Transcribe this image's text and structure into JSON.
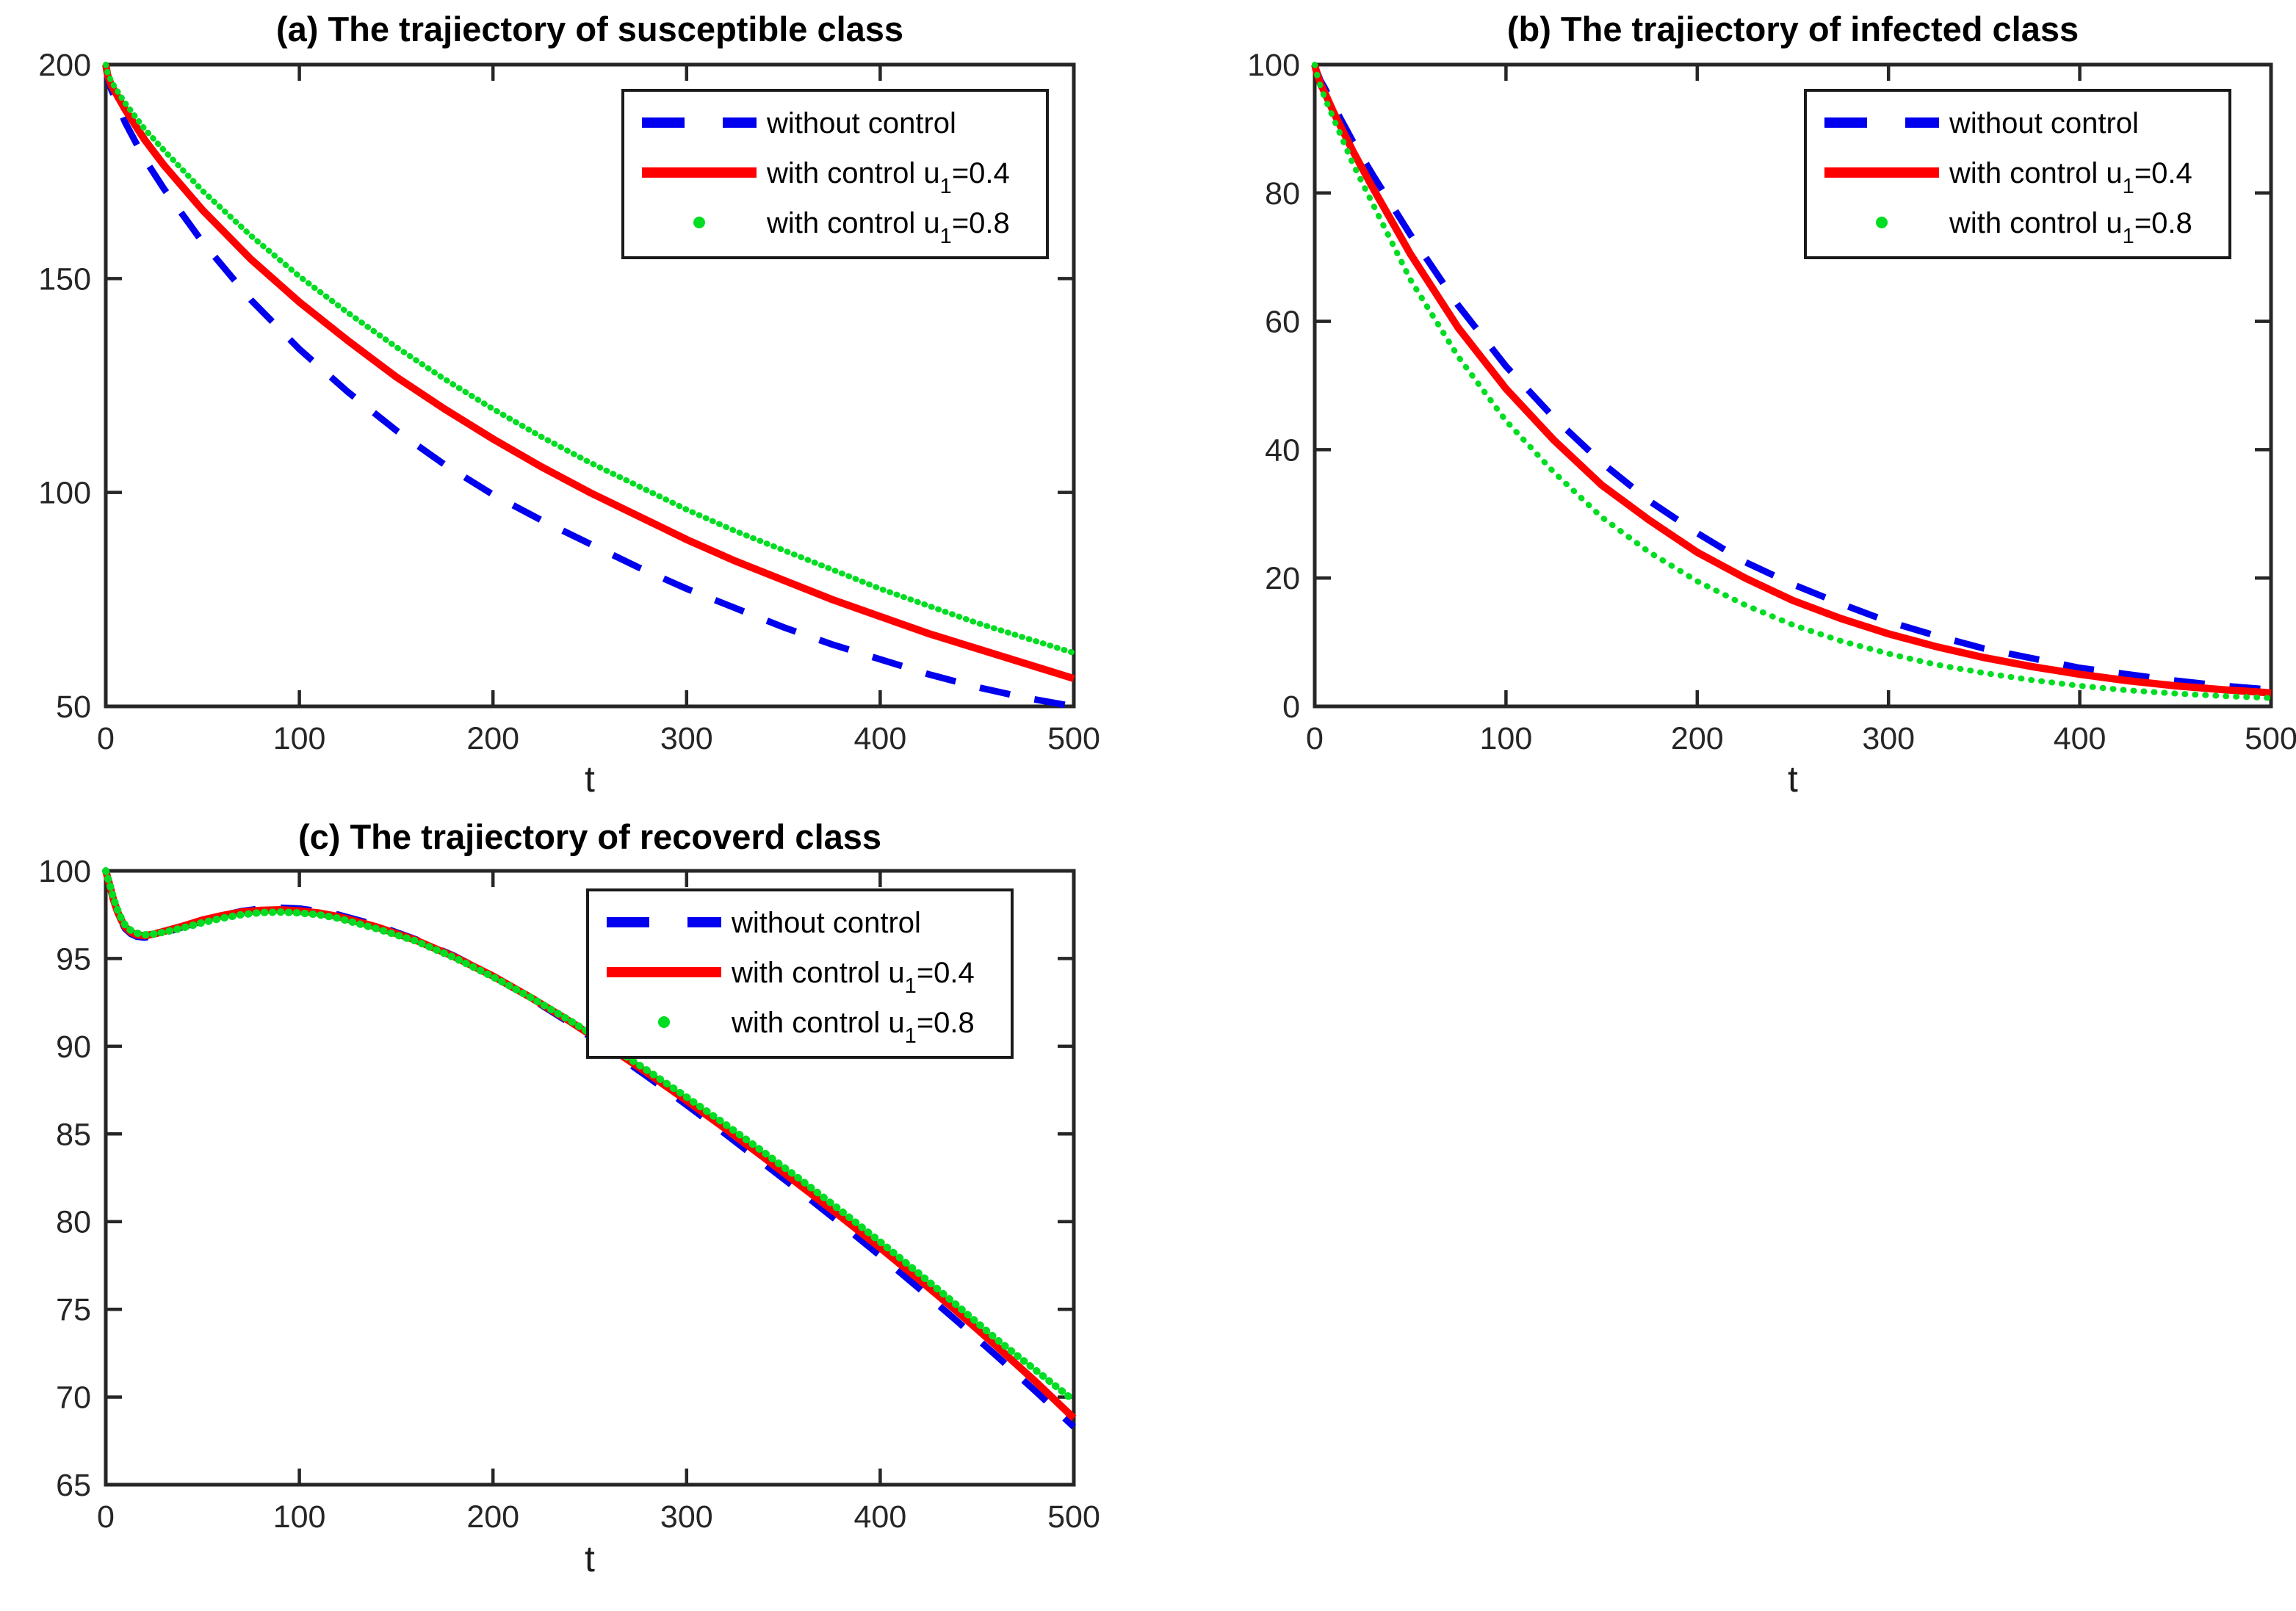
{
  "figure": {
    "background": "#ffffff",
    "axis_color": "#262626",
    "tick_label_color": "#262626",
    "title_color": "#000000",
    "series_colors": {
      "without_control": "#0000ee",
      "with_control_u1_04": "#ff0000",
      "with_control_u1_08": "#00dd22"
    }
  },
  "chart_data": [
    {
      "id": "a",
      "type": "line",
      "title": "(a) The trajiectory of susceptible class",
      "xlabel": "t",
      "xlim": [
        0,
        500
      ],
      "ylim": [
        50,
        200
      ],
      "xticks": [
        0,
        100,
        200,
        300,
        400,
        500
      ],
      "yticks": [
        50,
        100,
        150,
        200
      ],
      "grid": false,
      "legend_position": "top-right",
      "series": [
        {
          "name": "without control",
          "legend_label": {
            "pre": "without control",
            "sub": "",
            "post": ""
          },
          "color": "#0000ee",
          "style": "dashed",
          "x": [
            0,
            1,
            3,
            5,
            10,
            20,
            30,
            50,
            75,
            100,
            125,
            150,
            175,
            200,
            225,
            250,
            275,
            300,
            325,
            350,
            375,
            400,
            425,
            450,
            475,
            500
          ],
          "y": [
            200,
            197,
            194,
            192,
            186.5,
            178,
            171,
            158.5,
            145,
            133.5,
            123.5,
            114.5,
            106.5,
            99.5,
            93.5,
            88,
            82.5,
            77.5,
            73,
            68.5,
            64.5,
            61,
            57.5,
            54.5,
            52,
            50
          ]
        },
        {
          "name": "with control u1=0.4",
          "legend_label": {
            "pre": "with control u",
            "sub": "1",
            "post": "=0.4"
          },
          "color": "#ff0000",
          "style": "solid",
          "x": [
            0,
            1,
            3,
            5,
            10,
            20,
            30,
            50,
            75,
            100,
            125,
            150,
            175,
            200,
            225,
            250,
            275,
            300,
            325,
            350,
            375,
            400,
            425,
            450,
            475,
            500
          ],
          "y": [
            200,
            197.5,
            195,
            193.5,
            189.5,
            182.5,
            176.5,
            166,
            154.5,
            144.5,
            135.5,
            127,
            119.5,
            112.5,
            106,
            100,
            94.5,
            89,
            84,
            79.5,
            75,
            71,
            67,
            63.5,
            60,
            56.5
          ]
        },
        {
          "name": "with control u1=0.8",
          "legend_label": {
            "pre": "with control u",
            "sub": "1",
            "post": "=0.8"
          },
          "color": "#00dd22",
          "style": "dotted",
          "x": [
            0,
            1,
            3,
            5,
            10,
            20,
            30,
            50,
            75,
            100,
            125,
            150,
            175,
            200,
            225,
            250,
            275,
            300,
            325,
            350,
            375,
            400,
            425,
            450,
            475,
            500
          ],
          "y": [
            200,
            198,
            196,
            194.5,
            191,
            185,
            180,
            170.5,
            160,
            150.5,
            142,
            134,
            126.5,
            119.5,
            113,
            107,
            101.5,
            96,
            91,
            86.5,
            82,
            77.5,
            73.5,
            69.5,
            66,
            62.5
          ]
        }
      ]
    },
    {
      "id": "b",
      "type": "line",
      "title": "(b) The trajiectory of infected class",
      "xlabel": "t",
      "xlim": [
        0,
        500
      ],
      "ylim": [
        0,
        100
      ],
      "xticks": [
        0,
        100,
        200,
        300,
        400,
        500
      ],
      "yticks": [
        0,
        20,
        40,
        60,
        80,
        100
      ],
      "grid": false,
      "legend_position": "top-right",
      "series": [
        {
          "name": "without control",
          "legend_label": {
            "pre": "without control",
            "sub": "",
            "post": ""
          },
          "color": "#0000ee",
          "style": "dashed",
          "x": [
            0,
            1,
            3,
            5,
            10,
            20,
            30,
            50,
            75,
            100,
            125,
            150,
            175,
            200,
            225,
            250,
            275,
            300,
            325,
            350,
            375,
            400,
            425,
            450,
            475,
            500
          ],
          "y": [
            100,
            99,
            97.5,
            96.5,
            93.5,
            88,
            83,
            73.5,
            62.5,
            53,
            45,
            38,
            32,
            27,
            22.5,
            19,
            16,
            13.2,
            11,
            9,
            7.5,
            6,
            5,
            4,
            3.2,
            2.6
          ]
        },
        {
          "name": "with control u1=0.4",
          "legend_label": {
            "pre": "with control u",
            "sub": "1",
            "post": "=0.4"
          },
          "color": "#ff0000",
          "style": "solid",
          "x": [
            0,
            1,
            3,
            5,
            10,
            20,
            30,
            50,
            75,
            100,
            125,
            150,
            175,
            200,
            225,
            250,
            275,
            300,
            325,
            350,
            375,
            400,
            425,
            450,
            475,
            500
          ],
          "y": [
            100,
            98.8,
            97,
            95.8,
            92.5,
            86.5,
            81,
            70.5,
            59,
            49.5,
            41.5,
            34.5,
            29,
            24,
            20,
            16.5,
            13.7,
            11.3,
            9.3,
            7.6,
            6.2,
            5,
            4,
            3.2,
            2.6,
            2.1
          ]
        },
        {
          "name": "with control u1=0.8",
          "legend_label": {
            "pre": "with control u",
            "sub": "1",
            "post": "=0.8"
          },
          "color": "#00dd22",
          "style": "dotted",
          "x": [
            0,
            1,
            3,
            5,
            10,
            20,
            30,
            50,
            75,
            100,
            125,
            150,
            175,
            200,
            225,
            250,
            275,
            300,
            325,
            350,
            375,
            400,
            425,
            450,
            475,
            500
          ],
          "y": [
            100,
            98.6,
            96.6,
            95,
            91.5,
            84.5,
            78.5,
            66.5,
            54.5,
            44.5,
            36.5,
            29.5,
            24,
            19.5,
            15.8,
            12.7,
            10.2,
            8.2,
            6.5,
            5.2,
            4.1,
            3.2,
            2.5,
            2,
            1.6,
            1.3
          ]
        }
      ]
    },
    {
      "id": "c",
      "type": "line",
      "title": "(c) The trajiectory of recoverd class",
      "xlabel": "t",
      "xlim": [
        0,
        500
      ],
      "ylim": [
        65,
        100
      ],
      "xticks": [
        0,
        100,
        200,
        300,
        400,
        500
      ],
      "yticks": [
        65,
        70,
        75,
        80,
        85,
        90,
        95,
        100
      ],
      "grid": false,
      "legend_position": "top-right",
      "series": [
        {
          "name": "without control",
          "legend_label": {
            "pre": "without control",
            "sub": "",
            "post": ""
          },
          "color": "#0000ee",
          "style": "dashed",
          "x": [
            0,
            2,
            4,
            6,
            8,
            10,
            13,
            16,
            20,
            25,
            30,
            40,
            50,
            60,
            70,
            80,
            90,
            100,
            110,
            120,
            140,
            160,
            180,
            200,
            220,
            240,
            260,
            280,
            300,
            320,
            340,
            360,
            380,
            400,
            420,
            440,
            460,
            480,
            500
          ],
          "y": [
            100,
            99.2,
            98.3,
            97.6,
            97.1,
            96.7,
            96.4,
            96.25,
            96.2,
            96.3,
            96.45,
            96.8,
            97.15,
            97.45,
            97.7,
            97.85,
            97.9,
            97.85,
            97.7,
            97.5,
            96.9,
            96.1,
            95.15,
            94.0,
            92.7,
            91.3,
            89.8,
            88.25,
            86.65,
            85.0,
            83.3,
            81.6,
            79.85,
            78.05,
            76.2,
            74.3,
            72.35,
            70.35,
            68.3
          ]
        },
        {
          "name": "with control u1=0.4",
          "legend_label": {
            "pre": "with control u",
            "sub": "1",
            "post": "=0.4"
          },
          "color": "#ff0000",
          "style": "solid",
          "x": [
            0,
            2,
            4,
            6,
            8,
            10,
            13,
            16,
            20,
            25,
            30,
            40,
            50,
            60,
            70,
            80,
            90,
            100,
            110,
            120,
            140,
            160,
            180,
            200,
            220,
            240,
            260,
            280,
            300,
            320,
            340,
            360,
            380,
            400,
            420,
            440,
            460,
            480,
            500
          ],
          "y": [
            100,
            99.2,
            98.35,
            97.7,
            97.2,
            96.8,
            96.5,
            96.35,
            96.3,
            96.4,
            96.55,
            96.85,
            97.2,
            97.45,
            97.65,
            97.75,
            97.78,
            97.72,
            97.6,
            97.4,
            96.8,
            96.05,
            95.1,
            94.0,
            92.75,
            91.4,
            89.95,
            88.45,
            86.9,
            85.3,
            83.65,
            81.95,
            80.25,
            78.5,
            76.7,
            74.85,
            72.9,
            70.9,
            68.8
          ]
        },
        {
          "name": "with control u1=0.8",
          "legend_label": {
            "pre": "with control u",
            "sub": "1",
            "post": "=0.8"
          },
          "color": "#00dd22",
          "style": "dotted",
          "x": [
            0,
            2,
            4,
            6,
            8,
            10,
            13,
            16,
            20,
            25,
            30,
            40,
            50,
            60,
            70,
            80,
            90,
            100,
            110,
            120,
            140,
            160,
            180,
            200,
            220,
            240,
            260,
            280,
            300,
            320,
            340,
            360,
            380,
            400,
            420,
            440,
            460,
            480,
            500
          ],
          "y": [
            100,
            99.25,
            98.45,
            97.8,
            97.3,
            96.9,
            96.6,
            96.45,
            96.35,
            96.4,
            96.5,
            96.75,
            97.05,
            97.3,
            97.5,
            97.62,
            97.65,
            97.6,
            97.5,
            97.3,
            96.7,
            96.0,
            95.05,
            93.95,
            92.75,
            91.45,
            90.05,
            88.6,
            87.1,
            85.55,
            83.95,
            82.3,
            80.6,
            78.85,
            77.05,
            75.2,
            73.3,
            71.55,
            69.8
          ]
        }
      ]
    }
  ]
}
